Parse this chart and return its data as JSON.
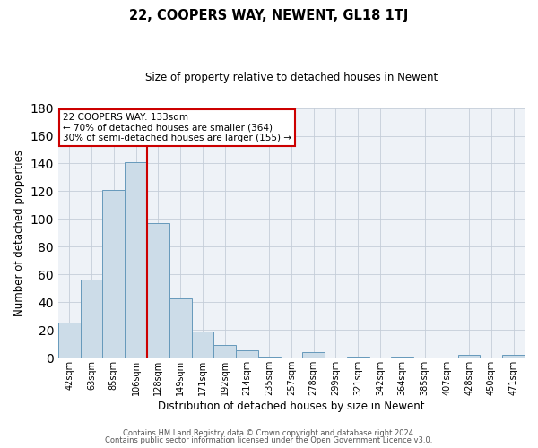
{
  "title": "22, COOPERS WAY, NEWENT, GL18 1TJ",
  "subtitle": "Size of property relative to detached houses in Newent",
  "xlabel": "Distribution of detached houses by size in Newent",
  "ylabel": "Number of detached properties",
  "bar_labels": [
    "42sqm",
    "63sqm",
    "85sqm",
    "106sqm",
    "128sqm",
    "149sqm",
    "171sqm",
    "192sqm",
    "214sqm",
    "235sqm",
    "257sqm",
    "278sqm",
    "299sqm",
    "321sqm",
    "342sqm",
    "364sqm",
    "385sqm",
    "407sqm",
    "428sqm",
    "450sqm",
    "471sqm"
  ],
  "bar_values": [
    25,
    56,
    121,
    141,
    97,
    43,
    19,
    9,
    5,
    1,
    0,
    4,
    0,
    1,
    0,
    1,
    0,
    0,
    2,
    0,
    2
  ],
  "bar_color": "#ccdce8",
  "bar_edge_color": "#6699bb",
  "vline_x_index": 4,
  "vline_color": "#cc0000",
  "annotation_title": "22 COOPERS WAY: 133sqm",
  "annotation_line1": "← 70% of detached houses are smaller (364)",
  "annotation_line2": "30% of semi-detached houses are larger (155) →",
  "annotation_box_color": "#ffffff",
  "annotation_box_edge": "#cc0000",
  "ylim": [
    0,
    180
  ],
  "yticks": [
    0,
    20,
    40,
    60,
    80,
    100,
    120,
    140,
    160,
    180
  ],
  "footer1": "Contains HM Land Registry data © Crown copyright and database right 2024.",
  "footer2": "Contains public sector information licensed under the Open Government Licence v3.0.",
  "bg_color": "#eef2f7",
  "grid_color": "#c5cdd8"
}
